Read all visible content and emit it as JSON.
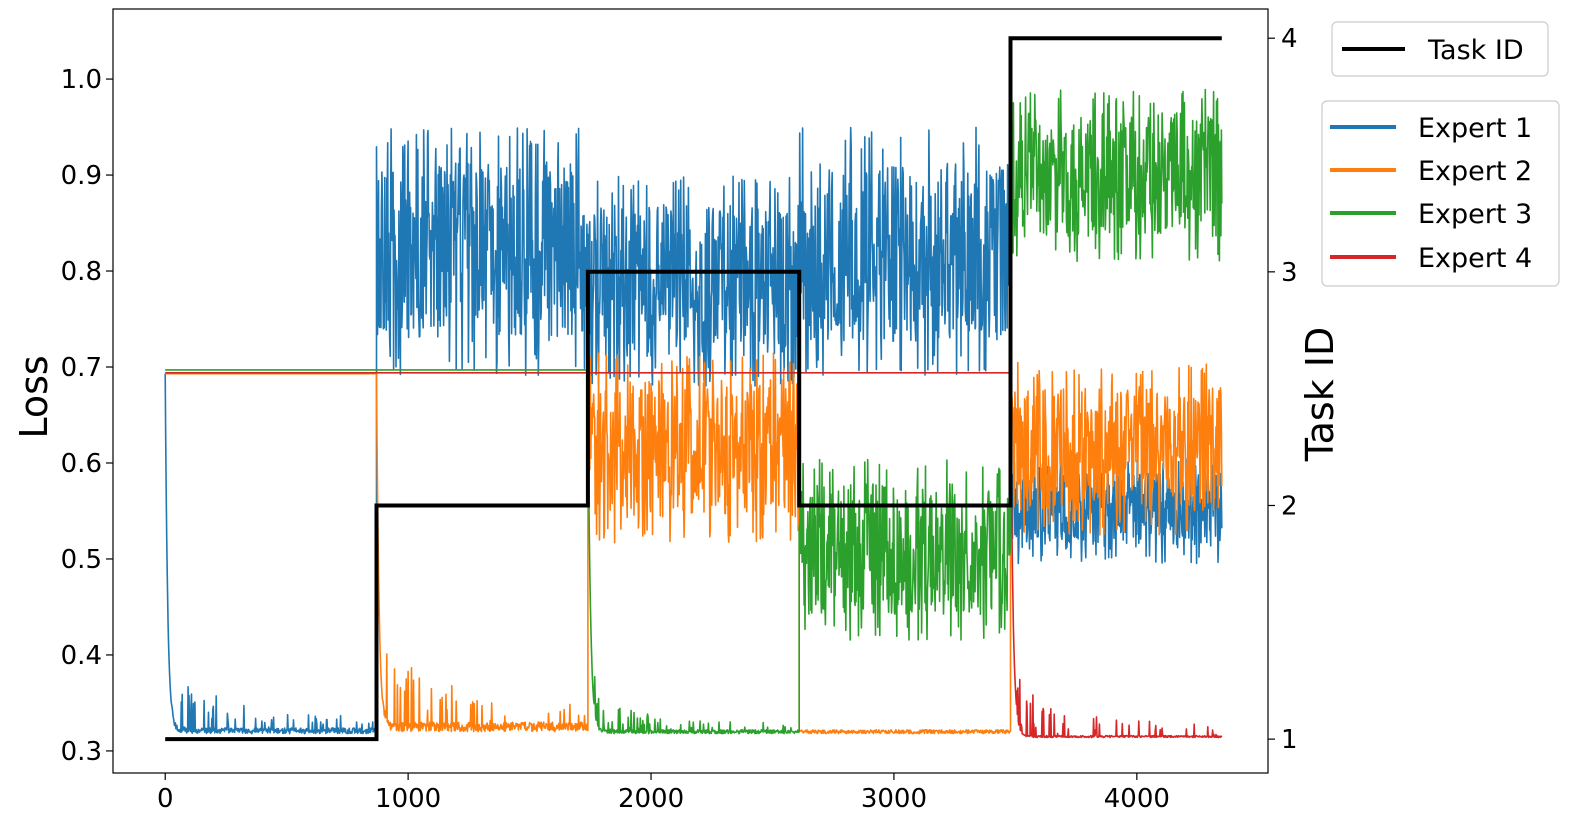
{
  "chart_data": {
    "type": "line",
    "title": "",
    "xlabel": "",
    "ylabel": "Loss",
    "y2label": "Task ID",
    "xlim": [
      -215,
      4540
    ],
    "ylim": [
      0.277,
      1.073
    ],
    "y2lim": [
      0.855,
      4.125
    ],
    "xticks": [
      0,
      1000,
      2000,
      3000,
      4000
    ],
    "yticks": [
      "0.3",
      "0.4",
      "0.5",
      "0.6",
      "0.7",
      "0.8",
      "0.9",
      "1.0"
    ],
    "y2ticks": [
      "1",
      "2",
      "3",
      "4"
    ],
    "grid": false,
    "task_boundaries": [
      0,
      870,
      1740,
      2610,
      3480,
      4350
    ],
    "task_id": {
      "name": "Task ID",
      "color": "#000000",
      "x": [
        0,
        870,
        870,
        1740,
        1740,
        2610,
        2610,
        3480,
        3480,
        4350
      ],
      "values": [
        1,
        1,
        2,
        2,
        3,
        3,
        2,
        2,
        4,
        4
      ]
    },
    "series": [
      {
        "name": "Expert 1",
        "color": "#1f77b4",
        "segments": [
          {
            "x": [
              0,
              870
            ],
            "start": 0.693,
            "decay_to": 0.318,
            "noise": 0.006,
            "spikes": 0.035
          },
          {
            "x": [
              870,
              1740
            ],
            "center": 0.82,
            "amplitude": 0.13
          },
          {
            "x": [
              1740,
              2610
            ],
            "center": 0.79,
            "amplitude": 0.11
          },
          {
            "x": [
              2610,
              3480
            ],
            "center": 0.82,
            "amplitude": 0.13
          },
          {
            "x": [
              3480,
              4350
            ],
            "center": 0.55,
            "amplitude": 0.055
          }
        ]
      },
      {
        "name": "Expert 2",
        "color": "#ff7f0e",
        "segments": [
          {
            "x": [
              0,
              870
            ],
            "flat": 0.693
          },
          {
            "x": [
              870,
              1740
            ],
            "start": 0.693,
            "decay_to": 0.32,
            "noise": 0.01,
            "spikes": 0.05
          },
          {
            "x": [
              1740,
              2610
            ],
            "center": 0.615,
            "amplitude": 0.1
          },
          {
            "x": [
              2610,
              3480
            ],
            "low": 0.318,
            "noise": 0.004
          },
          {
            "x": [
              3480,
              4350
            ],
            "center": 0.615,
            "amplitude": 0.09
          }
        ]
      },
      {
        "name": "Expert 3",
        "color": "#2ca02c",
        "segments": [
          {
            "x": [
              0,
              1740
            ],
            "flat": 0.697
          },
          {
            "x": [
              1740,
              2610
            ],
            "start": 0.697,
            "decay_to": 0.318,
            "noise": 0.004,
            "spikes": 0.02
          },
          {
            "x": [
              2610,
              3480
            ],
            "center": 0.51,
            "amplitude": 0.095
          },
          {
            "x": [
              3480,
              4350
            ],
            "center": 0.9,
            "amplitude": 0.09
          }
        ]
      },
      {
        "name": "Expert 4",
        "color": "#d62728",
        "segments": [
          {
            "x": [
              0,
              3480
            ],
            "flat": 0.694
          },
          {
            "x": [
              3480,
              4350
            ],
            "start": 0.694,
            "decay_to": 0.314,
            "noise": 0.002,
            "spikes": 0.03
          }
        ]
      }
    ]
  }
}
